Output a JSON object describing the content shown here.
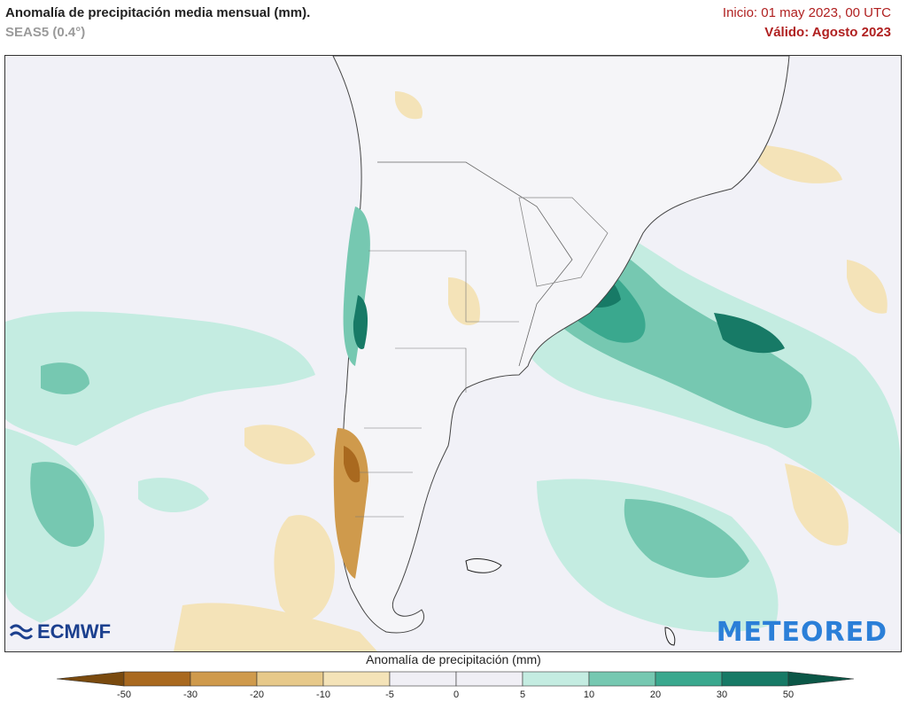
{
  "header": {
    "title": "Anomalía de precipitación media mensual (mm).",
    "subtitle": "SEAS5 (0.4°)",
    "init_label": "Inicio: 01 may 2023, 00 UTC",
    "valid_label": "Válido: Agosto 2023"
  },
  "logos": {
    "left": "ECMWF",
    "right": "METEORED"
  },
  "legend": {
    "title": "Anomalía de precipitación (mm)",
    "ticks": [
      "-50",
      "-30",
      "-20",
      "-10",
      "-5",
      "0",
      "5",
      "10",
      "20",
      "30",
      "50"
    ],
    "colors": [
      "#7a4a0e",
      "#a9691f",
      "#cf9a4c",
      "#e7c98a",
      "#f4e3b8",
      "#f0eff5",
      "#f0eff5",
      "#c4ece1",
      "#76c8b1",
      "#3aa88e",
      "#177a66",
      "#0b5747"
    ]
  }
}
